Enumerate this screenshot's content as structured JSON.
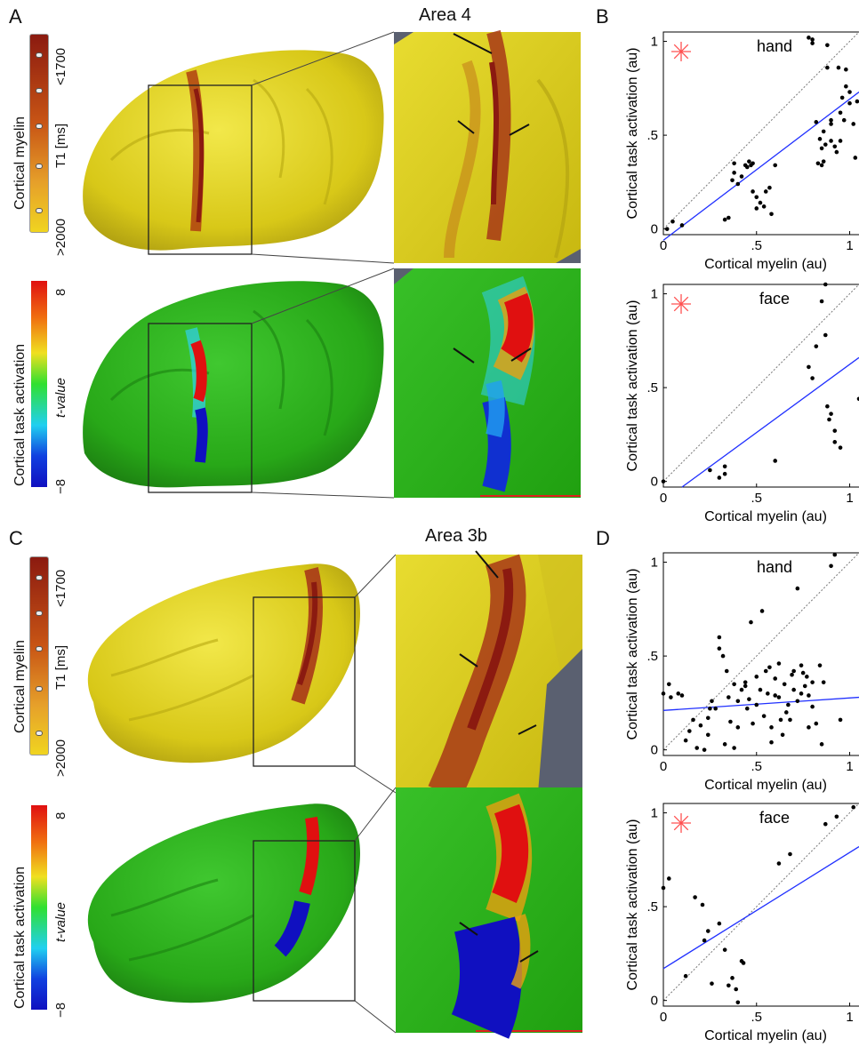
{
  "panels": {
    "A": {
      "letter": "A",
      "title": "Area 4"
    },
    "B": {
      "letter": "B"
    },
    "C": {
      "letter": "C",
      "title": "Area 3b"
    },
    "D": {
      "letter": "D"
    }
  },
  "colorbars": {
    "myelin": {
      "label": "Cortical myelin",
      "unit": "T1 [ms]",
      "top": "<1700",
      "bottom": ">2000",
      "colors": [
        "#8b1a10",
        "#e6b826"
      ]
    },
    "activation": {
      "label": "Cortical task activation",
      "unit": "t-value",
      "top": "8",
      "bottom": "−8",
      "colors": [
        "#e01010",
        "#f0e020",
        "#30e030",
        "#20d0f0",
        "#1010c0"
      ]
    }
  },
  "colors": {
    "surface_myelin": "#dcd020",
    "surface_activation": "#30b020",
    "fit_line": "#2030ff",
    "star": "#ff5050",
    "slate": "#5a6070"
  },
  "chart_data": [
    {
      "type": "scatter",
      "panel": "B",
      "label": "hand",
      "xlabel": "Cortical myelin (au)",
      "ylabel": "Cortical task activation (au)",
      "xlim": [
        0,
        1.05
      ],
      "ylim": [
        -0.03,
        1.05
      ],
      "xticks": [
        "0",
        ".5",
        "1"
      ],
      "yticks": [
        "0",
        ".5",
        "1"
      ],
      "significant": true,
      "fit": [
        [
          0,
          -0.06
        ],
        [
          1.05,
          0.73
        ]
      ],
      "x": [
        0.02,
        0.05,
        0.1,
        0.33,
        0.35,
        0.37,
        0.38,
        0.38,
        0.4,
        0.42,
        0.44,
        0.45,
        0.46,
        0.47,
        0.48,
        0.48,
        0.5,
        0.5,
        0.52,
        0.54,
        0.55,
        0.57,
        0.58,
        0.6,
        0.78,
        0.8,
        0.8,
        0.82,
        0.84,
        0.85,
        0.85,
        0.86,
        0.87,
        0.88,
        0.88,
        0.9,
        0.9,
        0.92,
        0.93,
        0.94,
        0.95,
        0.96,
        0.97,
        0.98,
        0.98,
        1.0,
        1.0,
        1.02,
        1.03,
        1.04,
        0.83,
        0.86,
        0.9,
        0.95
      ],
      "y": [
        0.0,
        0.04,
        0.02,
        0.05,
        0.06,
        0.26,
        0.3,
        0.35,
        0.24,
        0.28,
        0.34,
        0.33,
        0.36,
        0.34,
        0.35,
        0.2,
        0.17,
        0.11,
        0.14,
        0.12,
        0.2,
        0.22,
        0.08,
        0.34,
        1.02,
        0.99,
        1.01,
        0.57,
        0.48,
        0.43,
        0.34,
        0.36,
        0.45,
        0.98,
        0.86,
        0.56,
        0.47,
        0.44,
        0.41,
        0.86,
        0.62,
        0.7,
        0.58,
        0.85,
        0.76,
        0.73,
        0.67,
        0.56,
        0.38,
        0.68,
        0.35,
        0.52,
        0.58,
        0.47
      ]
    },
    {
      "type": "scatter",
      "panel": "B",
      "label": "face",
      "xlabel": "Cortical myelin (au)",
      "ylabel": "Cortical task activation (au)",
      "xlim": [
        0,
        1.05
      ],
      "ylim": [
        -0.03,
        1.05
      ],
      "xticks": [
        "0",
        ".5",
        "1"
      ],
      "yticks": [
        "0",
        ".5",
        "1"
      ],
      "significant": true,
      "fit": [
        [
          0.1,
          -0.03
        ],
        [
          1.05,
          0.66
        ]
      ],
      "x": [
        0.0,
        0.25,
        0.3,
        0.33,
        0.33,
        0.6,
        0.78,
        0.8,
        0.82,
        0.85,
        0.87,
        0.88,
        0.89,
        0.9,
        0.92,
        0.92,
        0.95,
        1.05,
        0.87
      ],
      "y": [
        0.0,
        0.06,
        0.02,
        0.04,
        0.08,
        0.11,
        0.61,
        0.55,
        0.72,
        0.96,
        0.78,
        0.4,
        0.33,
        0.36,
        0.21,
        0.27,
        0.18,
        0.44,
        1.05
      ]
    },
    {
      "type": "scatter",
      "panel": "D",
      "label": "hand",
      "xlabel": "Cortical myelin (au)",
      "ylabel": "Cortical task activation (au)",
      "xlim": [
        0,
        1.05
      ],
      "ylim": [
        -0.03,
        1.05
      ],
      "xticks": [
        "0",
        ".5",
        "1"
      ],
      "yticks": [
        "0",
        ".5",
        "1"
      ],
      "significant": false,
      "fit": [
        [
          0,
          0.21
        ],
        [
          1.05,
          0.28
        ]
      ],
      "x": [
        0.0,
        0.04,
        0.08,
        0.1,
        0.12,
        0.14,
        0.16,
        0.2,
        0.22,
        0.24,
        0.25,
        0.26,
        0.28,
        0.3,
        0.3,
        0.32,
        0.34,
        0.35,
        0.36,
        0.38,
        0.38,
        0.4,
        0.4,
        0.42,
        0.44,
        0.45,
        0.46,
        0.48,
        0.5,
        0.5,
        0.52,
        0.54,
        0.55,
        0.56,
        0.58,
        0.58,
        0.6,
        0.6,
        0.62,
        0.62,
        0.64,
        0.65,
        0.66,
        0.68,
        0.7,
        0.7,
        0.72,
        0.72,
        0.74,
        0.75,
        0.76,
        0.78,
        0.78,
        0.8,
        0.8,
        0.82,
        0.84,
        0.86,
        0.9,
        0.92,
        0.95,
        0.03,
        0.18,
        0.24,
        0.33,
        0.44,
        0.47,
        0.53,
        0.63,
        0.69,
        0.77,
        0.85,
        0.57,
        0.67,
        0.74
      ],
      "y": [
        0.3,
        0.28,
        0.3,
        0.29,
        0.05,
        0.1,
        0.16,
        0.13,
        0.0,
        0.17,
        0.22,
        0.26,
        0.22,
        0.6,
        0.54,
        0.5,
        0.42,
        0.28,
        0.15,
        0.01,
        0.35,
        0.12,
        0.26,
        0.32,
        0.34,
        0.22,
        0.27,
        0.14,
        0.39,
        0.24,
        0.32,
        0.18,
        0.42,
        0.3,
        0.12,
        0.04,
        0.38,
        0.29,
        0.28,
        0.46,
        0.08,
        0.35,
        0.2,
        0.16,
        0.32,
        0.42,
        0.26,
        0.86,
        0.45,
        0.41,
        0.34,
        0.12,
        0.29,
        0.23,
        0.36,
        0.14,
        0.45,
        0.36,
        0.98,
        1.04,
        0.16,
        0.35,
        0.01,
        0.08,
        0.03,
        0.36,
        0.68,
        0.74,
        0.16,
        0.4,
        0.39,
        0.03,
        0.44,
        0.24,
        0.3
      ],
      "xs_extra": []
    },
    {
      "type": "scatter",
      "panel": "D",
      "label": "face",
      "xlabel": "Cortical myelin (au)",
      "ylabel": "Cortical task activation (au)",
      "xlim": [
        0,
        1.05
      ],
      "ylim": [
        -0.03,
        1.05
      ],
      "xticks": [
        "0",
        ".5",
        "1"
      ],
      "yticks": [
        "0",
        ".5",
        "1"
      ],
      "significant": true,
      "fit": [
        [
          0,
          0.17
        ],
        [
          1.05,
          0.82
        ]
      ],
      "x": [
        0.0,
        0.03,
        0.12,
        0.17,
        0.21,
        0.22,
        0.24,
        0.26,
        0.3,
        0.33,
        0.35,
        0.37,
        0.39,
        0.4,
        0.42,
        0.43,
        0.62,
        0.68,
        0.87,
        0.93,
        1.02
      ],
      "y": [
        0.6,
        0.65,
        0.13,
        0.55,
        0.51,
        0.32,
        0.37,
        0.09,
        0.41,
        0.27,
        0.08,
        0.12,
        0.06,
        -0.01,
        0.21,
        0.2,
        0.73,
        0.78,
        0.94,
        0.98,
        1.03
      ]
    }
  ]
}
